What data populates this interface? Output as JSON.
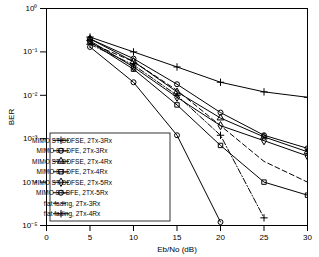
{
  "chart_data": {
    "type": "line",
    "x_label": "Eb/No (dB)",
    "y_label": "BER",
    "log": "y",
    "grid": false,
    "legend": "lower left",
    "x": [
      5,
      10,
      15,
      20,
      25,
      30
    ],
    "xlim": [
      0,
      30
    ],
    "xticks": [
      0,
      5,
      10,
      15,
      20,
      25,
      30
    ],
    "ylim": [
      1e-05,
      1
    ],
    "yticks": [
      {
        "value": 1e-05,
        "label": "10⁻⁵"
      },
      {
        "value": 0.0001,
        "label": "10⁻⁴"
      },
      {
        "value": 0.001,
        "label": "10⁻³"
      },
      {
        "value": 0.01,
        "label": "10⁻²"
      },
      {
        "value": 0.1,
        "label": "10⁻¹"
      },
      {
        "value": 1,
        "label": "10⁰"
      }
    ],
    "series": [
      {
        "name": "MIMO ST-DDFSE, 2Tx-3Rx",
        "color": "#000000",
        "marker": "plus",
        "line_style": "solid",
        "values": [
          0.22,
          0.1,
          0.045,
          0.02,
          0.012,
          0.009
        ]
      },
      {
        "name": "MIMO ST-DFE, 2Tx-3Rx",
        "color": "#000000",
        "marker": "circle",
        "line_style": "solid",
        "values": [
          0.2,
          0.07,
          0.018,
          0.004,
          0.0012,
          0.0006
        ]
      },
      {
        "name": "MIMO ST-DDFSE, 2Tx-4Rx",
        "color": "#000000",
        "marker": "triangle",
        "line_style": "solid",
        "values": [
          0.2,
          0.06,
          0.012,
          0.003,
          0.0011,
          0.0005
        ]
      },
      {
        "name": "MIMO ST-DFE, 2Tx-4Rx",
        "color": "#000000",
        "marker": "square",
        "line_style": "solid",
        "values": [
          0.17,
          0.04,
          0.006,
          0.0007,
          0.0001,
          5e-05
        ]
      },
      {
        "name": "MIMO ST-DDFSE, 2Tx-5Rx",
        "color": "#000000",
        "marker": "diamond",
        "line_style": "solid",
        "values": [
          0.18,
          0.045,
          0.009,
          0.002,
          0.0009,
          0.0004
        ]
      },
      {
        "name": "MIMO ST-DFE, 2TX-5Rx",
        "color": "#000000",
        "marker": "circle",
        "line_style": "solid",
        "values": [
          0.13,
          0.02,
          0.0012,
          1.2e-05,
          null,
          null
        ]
      },
      {
        "name": "flat fading, 2Tx-3Rx",
        "color": "#000000",
        "marker": "none",
        "line_style": "dashed",
        "values": [
          0.16,
          0.06,
          0.013,
          0.002,
          0.0003,
          0.0001
        ]
      },
      {
        "name": "flat fading, 2Tx-4Rx",
        "color": "#000000",
        "marker": "plus",
        "line_style": "dashdot",
        "values": [
          0.15,
          0.05,
          0.01,
          0.0012,
          1.5e-05,
          null
        ]
      }
    ]
  }
}
